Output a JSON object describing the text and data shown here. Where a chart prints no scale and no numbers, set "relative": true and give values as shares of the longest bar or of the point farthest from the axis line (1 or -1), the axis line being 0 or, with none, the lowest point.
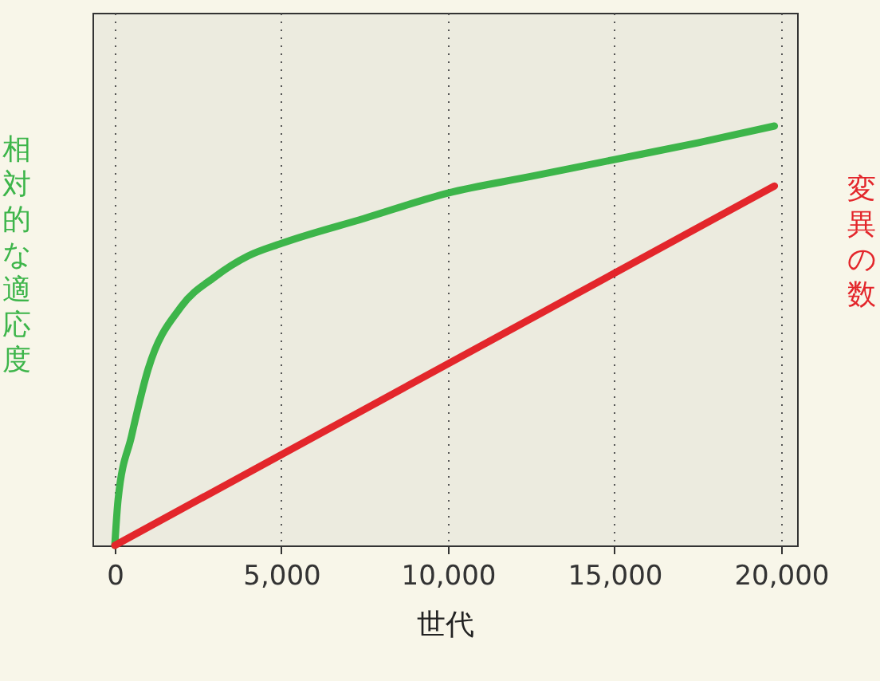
{
  "chart_data": {
    "type": "line",
    "relative": true,
    "xlabel": "世代",
    "ylabel": "相対的な適応度",
    "y2label": "変異の数",
    "xlim": [
      -670,
      20480
    ],
    "xticks": [
      {
        "value": 0,
        "label": "0"
      },
      {
        "value": 5000,
        "label": "5,000"
      },
      {
        "value": 10000,
        "label": "10,000"
      },
      {
        "value": 15000,
        "label": "15,000"
      },
      {
        "value": 20000,
        "label": "20,000"
      }
    ],
    "grid": "x",
    "line_style": "solid",
    "marker": "none",
    "series": [
      {
        "color": "#3db54a",
        "x": [
          0,
          100,
          500,
          1000,
          2000,
          3000,
          4000,
          5000,
          7500,
          10000,
          12500,
          15000,
          17500,
          19800
        ],
        "values": [
          0,
          0.11,
          0.26,
          0.42,
          0.57,
          0.64,
          0.69,
          0.72,
          0.78,
          0.84,
          0.88,
          0.92,
          0.96,
          1
        ]
      },
      {
        "color": "#e3262b",
        "x": [
          0,
          19800
        ],
        "values": [
          0,
          0.857
        ]
      }
    ]
  }
}
